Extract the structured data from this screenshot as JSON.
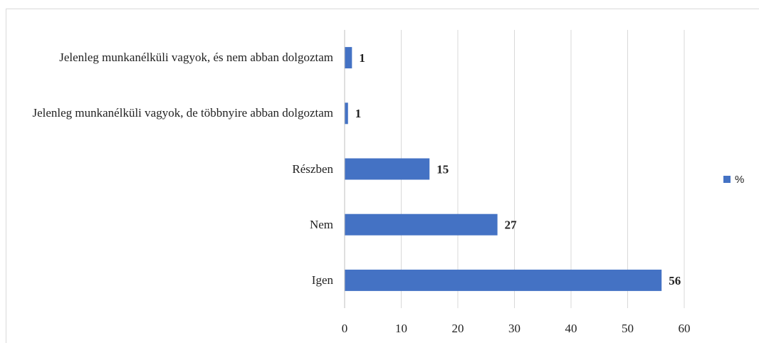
{
  "chart_data": {
    "type": "hbar",
    "categories": [
      "Jelenleg munkanélküli vagyok, és nem abban dolgoztam",
      "Jelenleg munkanélküli vagyok, de többnyire abban dolgoztam",
      "Részben",
      "Nem",
      "Igen"
    ],
    "series": [
      {
        "name": "%",
        "color": "#4472c4",
        "values": [
          1.3,
          0.6,
          15,
          27,
          56
        ],
        "value_labels": [
          "1",
          "1",
          "15",
          "27",
          "56"
        ]
      }
    ],
    "xlim": [
      0,
      60
    ],
    "xticks": [
      0,
      10,
      20,
      30,
      40,
      50,
      60
    ],
    "grid": true,
    "legend": "right"
  }
}
